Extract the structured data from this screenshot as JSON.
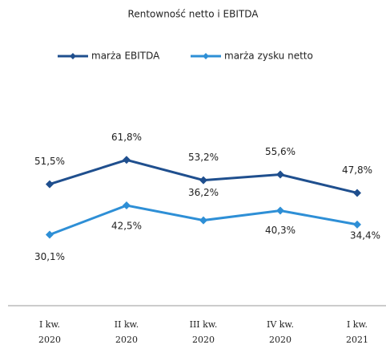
{
  "chart_data": {
    "type": "line",
    "title": "Rentowność netto i EBITDA",
    "categories": [
      "I kw.\n2020",
      "II kw.\n2020",
      "III kw.\n2020",
      "IV kw.\n2020",
      "I kw.\n2021"
    ],
    "series": [
      {
        "name": "marża EBITDA",
        "color": "#1f4f8e",
        "values": [
          51.5,
          61.8,
          53.2,
          55.6,
          47.8
        ],
        "value_labels": [
          "51,5%",
          "61,8%",
          "53,2%",
          "55,6%",
          "47,8%"
        ]
      },
      {
        "name": "marża zysku netto",
        "color": "#2e8fd6",
        "values": [
          30.1,
          42.5,
          36.2,
          40.3,
          34.4
        ],
        "value_labels": [
          "30,1%",
          "42,5%",
          "36,2%",
          "40,3%",
          "34,4%"
        ]
      }
    ],
    "legend": "top"
  }
}
